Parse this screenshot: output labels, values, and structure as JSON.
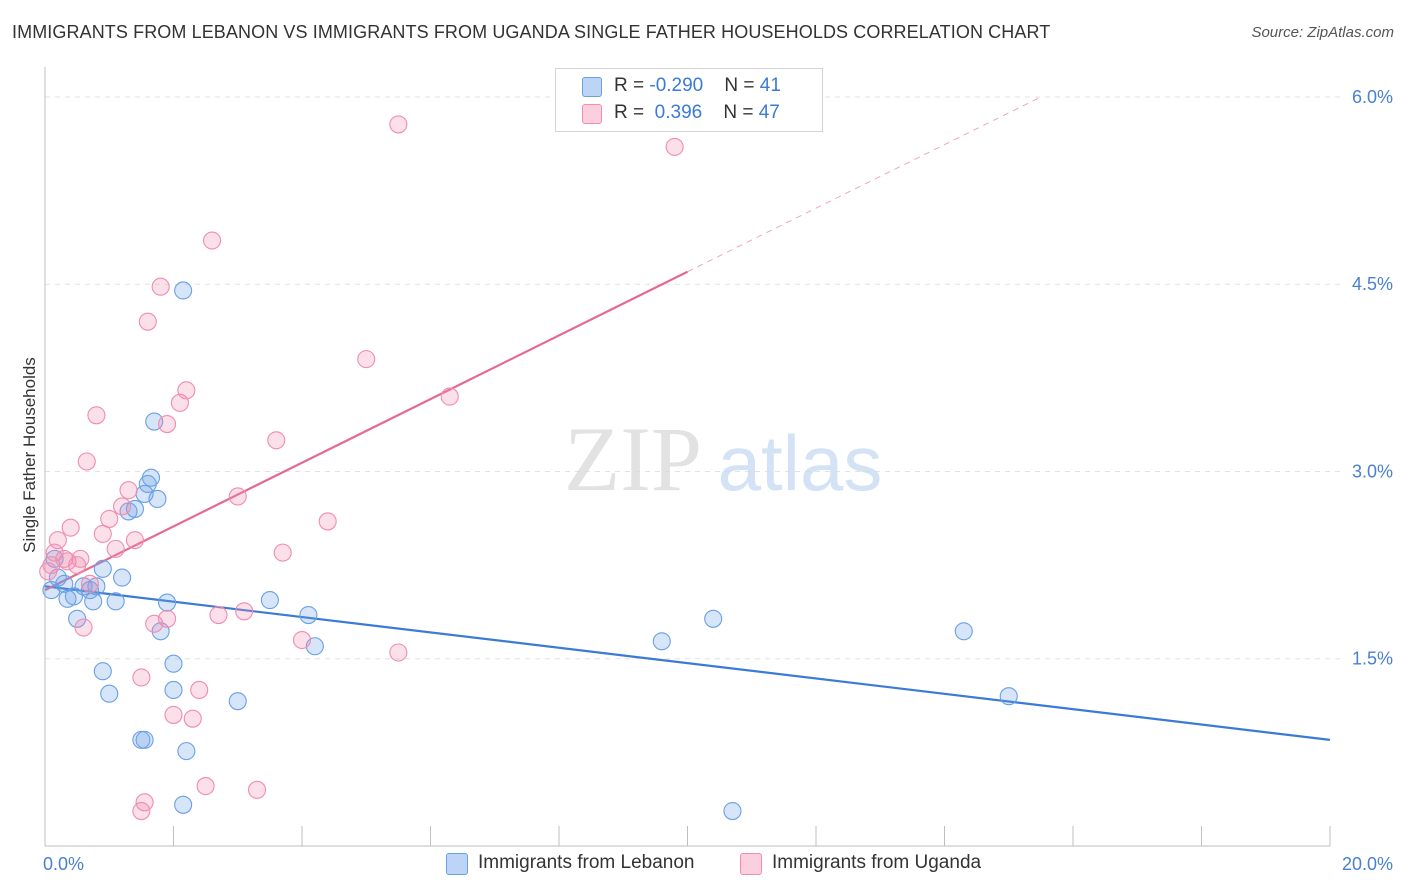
{
  "chart_data": {
    "type": "scatter",
    "title": "IMMIGRANTS FROM LEBANON VS IMMIGRANTS FROM UGANDA SINGLE FATHER HOUSEHOLDS CORRELATION CHART",
    "source": "Source: ZipAtlas.com",
    "ylabel": "Single Father Households",
    "xlim": [
      0,
      20
    ],
    "ylim": [
      0,
      6.2
    ],
    "x_tick_labels": [
      "0.0%",
      "20.0%"
    ],
    "y_ticks": [
      1.5,
      3.0,
      4.5,
      6.0
    ],
    "y_tick_labels": [
      "1.5%",
      "3.0%",
      "4.5%",
      "6.0%"
    ],
    "watermark": {
      "part1": "ZIP",
      "part2": "atlas"
    },
    "legend": [
      {
        "r_label": "R = ",
        "r_value": "-0.290",
        "n_label": "N = ",
        "n_value": "41"
      },
      {
        "r_label": "R = ",
        "r_value": " 0.396",
        "n_label": "N = ",
        "n_value": "47"
      }
    ],
    "series": [
      {
        "name": "Immigrants from Lebanon",
        "color": "#6aa0e6",
        "line_color": "#3a7bd5",
        "trend": {
          "x0": 0.0,
          "y0": 2.08,
          "x1": 20.0,
          "y1": 0.85,
          "dashed_to": null
        },
        "points": [
          [
            0.1,
            2.05
          ],
          [
            0.15,
            2.3
          ],
          [
            0.2,
            2.15
          ],
          [
            0.3,
            2.1
          ],
          [
            0.35,
            1.98
          ],
          [
            0.45,
            2.0
          ],
          [
            0.5,
            1.82
          ],
          [
            0.6,
            2.08
          ],
          [
            0.7,
            2.05
          ],
          [
            0.75,
            1.96
          ],
          [
            0.8,
            2.08
          ],
          [
            0.9,
            2.22
          ],
          [
            1.1,
            1.96
          ],
          [
            1.2,
            2.15
          ],
          [
            1.3,
            2.68
          ],
          [
            1.4,
            2.7
          ],
          [
            1.55,
            2.82
          ],
          [
            1.6,
            2.9
          ],
          [
            1.65,
            2.95
          ],
          [
            1.7,
            3.4
          ],
          [
            1.75,
            2.78
          ],
          [
            1.8,
            1.72
          ],
          [
            0.9,
            1.4
          ],
          [
            1.0,
            1.22
          ],
          [
            1.5,
            0.85
          ],
          [
            1.55,
            0.85
          ],
          [
            1.9,
            1.95
          ],
          [
            2.0,
            1.25
          ],
          [
            2.0,
            1.46
          ],
          [
            2.15,
            0.33
          ],
          [
            2.2,
            0.76
          ],
          [
            2.15,
            4.45
          ],
          [
            3.0,
            1.16
          ],
          [
            3.5,
            1.97
          ],
          [
            4.1,
            1.85
          ],
          [
            4.2,
            1.6
          ],
          [
            9.6,
            1.64
          ],
          [
            10.4,
            1.82
          ],
          [
            14.3,
            1.72
          ],
          [
            15.0,
            1.2
          ],
          [
            10.7,
            0.28
          ]
        ]
      },
      {
        "name": "Immigrants from Uganda",
        "color": "#f08cb0",
        "line_color": "#e46a93",
        "trend": {
          "x0": 0.0,
          "y0": 2.05,
          "x1": 10.0,
          "y1": 4.6,
          "dashed_to": [
            15.5,
            6.0
          ]
        },
        "points": [
          [
            0.05,
            2.2
          ],
          [
            0.1,
            2.25
          ],
          [
            0.15,
            2.35
          ],
          [
            0.2,
            2.45
          ],
          [
            0.3,
            2.3
          ],
          [
            0.35,
            2.28
          ],
          [
            0.4,
            2.55
          ],
          [
            0.5,
            2.25
          ],
          [
            0.55,
            2.3
          ],
          [
            0.6,
            1.75
          ],
          [
            0.65,
            3.08
          ],
          [
            0.7,
            2.1
          ],
          [
            0.8,
            3.45
          ],
          [
            0.9,
            2.5
          ],
          [
            1.0,
            2.62
          ],
          [
            1.1,
            2.38
          ],
          [
            1.2,
            2.72
          ],
          [
            1.3,
            2.85
          ],
          [
            1.4,
            2.45
          ],
          [
            1.5,
            1.35
          ],
          [
            1.55,
            0.35
          ],
          [
            1.6,
            4.2
          ],
          [
            1.7,
            1.78
          ],
          [
            1.8,
            4.48
          ],
          [
            1.9,
            1.82
          ],
          [
            2.0,
            1.05
          ],
          [
            2.1,
            3.55
          ],
          [
            2.2,
            3.65
          ],
          [
            2.3,
            1.02
          ],
          [
            2.4,
            1.25
          ],
          [
            2.5,
            0.48
          ],
          [
            2.6,
            4.85
          ],
          [
            2.7,
            1.85
          ],
          [
            3.0,
            2.8
          ],
          [
            3.1,
            1.88
          ],
          [
            3.3,
            0.45
          ],
          [
            3.6,
            3.25
          ],
          [
            3.7,
            2.35
          ],
          [
            4.0,
            1.65
          ],
          [
            4.4,
            2.6
          ],
          [
            5.0,
            3.9
          ],
          [
            5.5,
            1.55
          ],
          [
            5.5,
            5.78
          ],
          [
            6.3,
            3.6
          ],
          [
            9.8,
            5.6
          ],
          [
            1.5,
            0.28
          ],
          [
            1.9,
            3.38
          ]
        ]
      }
    ]
  }
}
